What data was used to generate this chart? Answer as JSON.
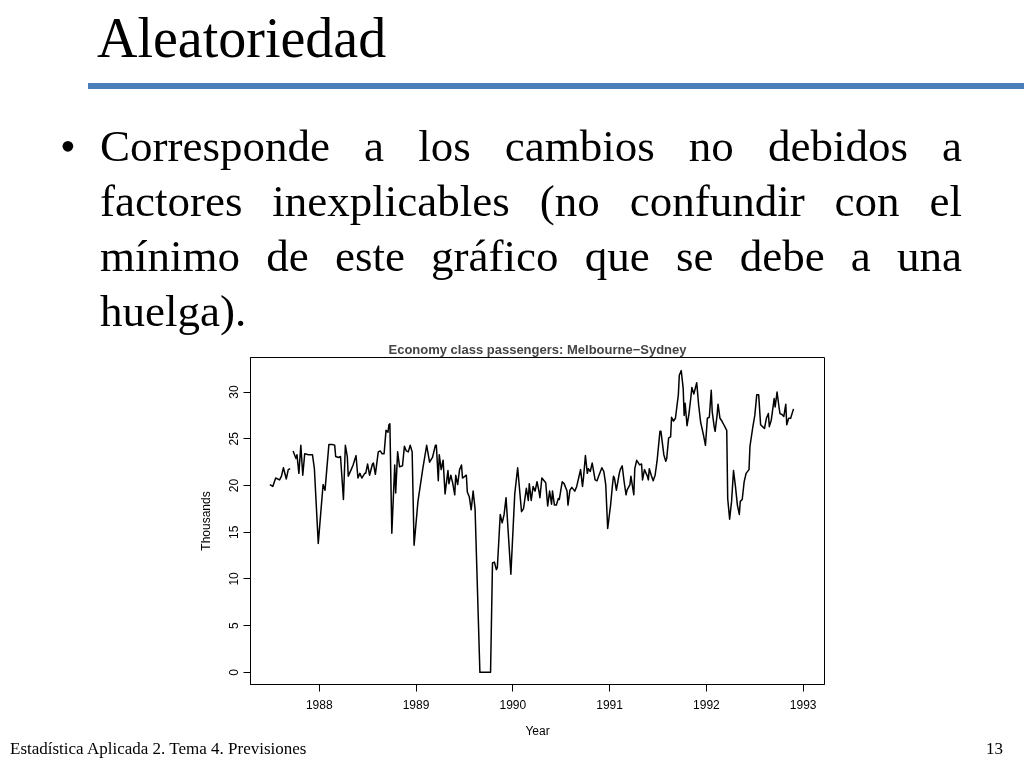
{
  "chart_data": {
    "type": "line",
    "title": "Economy class passengers: Melbourne−Sydney",
    "xlabel": "Year",
    "ylabel": "Thousands",
    "annotations": [
      "Aleatoriedad",
      "•",
      "Corresponde a los cambios no debidos a factores inexplicables (no confundir con el mínimo de este gráfico que se debe a una huelga).",
      "Estadística Aplicada 2. Tema 4. Previsiones",
      "13"
    ],
    "xlim": [
      1987.29,
      1993.22
    ],
    "xticks": [
      1988,
      1989,
      1990,
      1991,
      1992,
      1993
    ],
    "ylim": [
      -1.3,
      33.7
    ],
    "yticks": [
      0,
      5,
      10,
      15,
      20,
      25,
      30
    ],
    "grid": false,
    "color": "#000000",
    "x": [
      1987.49,
      1987.52,
      1987.55,
      1987.59,
      1987.61,
      1987.63,
      1987.66,
      1987.68,
      1987.7,
      1987.72,
      1987.73,
      1987.76,
      1987.77,
      1987.79,
      1987.81,
      1987.83,
      1987.85,
      1987.89,
      1987.91,
      1987.93,
      1987.95,
      1987.99,
      1988.02,
      1988.04,
      1988.06,
      1988.1,
      1988.13,
      1988.16,
      1988.17,
      1988.2,
      1988.22,
      1988.25,
      1988.27,
      1988.29,
      1988.3,
      1988.33,
      1988.35,
      1988.38,
      1988.4,
      1988.42,
      1988.44,
      1988.47,
      1988.48,
      1988.5,
      1988.52,
      1988.55,
      1988.56,
      1988.58,
      1988.61,
      1988.63,
      1988.65,
      1988.67,
      1988.69,
      1988.71,
      1988.72,
      1988.73,
      1988.75,
      1988.78,
      1988.79,
      1988.81,
      1988.83,
      1988.86,
      1988.88,
      1988.9,
      1988.92,
      1988.94,
      1988.96,
      1988.98,
      1989.02,
      1989.07,
      1989.11,
      1989.14,
      1989.17,
      1989.2,
      1989.21,
      1989.23,
      1989.24,
      1989.26,
      1989.28,
      1989.3,
      1989.33,
      1989.34,
      1989.36,
      1989.38,
      1989.4,
      1989.41,
      1989.43,
      1989.45,
      1989.47,
      1989.48,
      1989.52,
      1989.53,
      1989.55,
      1989.57,
      1989.59,
      1989.61,
      1989.66,
      1989.77,
      1989.79,
      1989.81,
      1989.83,
      1989.84,
      1989.87,
      1989.89,
      1989.91,
      1989.93,
      1989.98,
      1990.02,
      1990.05,
      1990.09,
      1990.11,
      1990.14,
      1990.16,
      1990.17,
      1990.19,
      1990.21,
      1990.23,
      1990.25,
      1990.27,
      1990.28,
      1990.3,
      1990.34,
      1990.36,
      1990.38,
      1990.4,
      1990.41,
      1990.43,
      1990.45,
      1990.47,
      1990.48,
      1990.51,
      1990.53,
      1990.56,
      1990.57,
      1990.59,
      1990.61,
      1990.64,
      1990.66,
      1990.68,
      1990.7,
      1990.72,
      1990.73,
      1990.75,
      1990.77,
      1990.78,
      1990.8,
      1990.82,
      1990.83,
      1990.85,
      1990.87,
      1990.89,
      1990.92,
      1990.94,
      1990.96,
      1990.98,
      1991.01,
      1991.03,
      1991.04,
      1991.05,
      1991.07,
      1991.1,
      1991.11,
      1991.13,
      1991.15,
      1991.17,
      1991.18,
      1991.21,
      1991.22,
      1991.25,
      1991.26,
      1991.28,
      1991.31,
      1991.33,
      1991.34,
      1991.36,
      1991.39,
      1991.4,
      1991.41,
      1991.43,
      1991.45,
      1991.47,
      1991.49,
      1991.52,
      1991.53,
      1991.56,
      1991.58,
      1991.59,
      1991.61,
      1991.63,
      1991.64,
      1991.66,
      1991.68,
      1991.71,
      1991.72,
      1991.74,
      1991.76,
      1991.77,
      1991.78,
      1991.8,
      1991.82,
      1991.84,
      1991.85,
      1991.87,
      1991.9,
      1991.92,
      1991.94,
      1991.97,
      1991.99,
      1992.01,
      1992.03,
      1992.05,
      1992.06,
      1992.08,
      1992.09,
      1992.11,
      1992.12,
      1992.14,
      1992.16,
      1992.18,
      1992.21,
      1992.22,
      1992.24,
      1992.26,
      1992.28,
      1992.3,
      1992.32,
      1992.34,
      1992.35,
      1992.37,
      1992.39,
      1992.41,
      1992.44,
      1992.45,
      1992.48,
      1992.5,
      1992.52,
      1992.54,
      1992.56,
      1992.58,
      1992.6,
      1992.62,
      1992.64,
      1992.65,
      1992.67,
      1992.7,
      1992.71,
      1992.73,
      1992.75,
      1992.76,
      1992.78,
      1992.8,
      1992.82,
      1992.83,
      1992.85,
      1992.87,
      1992.9
    ],
    "values": [
      20.1,
      19.9,
      20.8,
      20.6,
      21.0,
      21.9,
      20.7,
      21.7,
      21.8,
      null,
      23.7,
      22.9,
      23.3,
      21.3,
      24.3,
      21.1,
      23.4,
      23.3,
      23.3,
      23.3,
      21.8,
      13.8,
      17.6,
      20.1,
      19.5,
      24.4,
      24.4,
      24.3,
      23.1,
      23.0,
      23.1,
      18.5,
      24.3,
      23.1,
      21.0,
      21.7,
      22.2,
      23.2,
      20.8,
      21.3,
      20.8,
      21.3,
      21.3,
      22.3,
      21.1,
      22.3,
      22.4,
      21.2,
      23.6,
      23.7,
      23.4,
      23.4,
      25.9,
      25.7,
      26.5,
      26.6,
      14.9,
      22.2,
      19.2,
      23.6,
      22.0,
      22.1,
      24.2,
      23.7,
      23.6,
      24.3,
      23.6,
      13.6,
      18.3,
      21.8,
      24.3,
      22.5,
      23.0,
      24.3,
      24.3,
      20.5,
      23.3,
      21.7,
      22.7,
      19.1,
      21.6,
      20.2,
      21.1,
      20.2,
      19.0,
      21.1,
      20.1,
      21.7,
      22.2,
      20.8,
      21.1,
      19.3,
      18.8,
      17.4,
      19.4,
      17.5,
      0,
      0,
      11.7,
      11.8,
      11.0,
      11.2,
      16.9,
      16.0,
      16.9,
      18.7,
      10.5,
      19.1,
      21.9,
      17.2,
      17.5,
      19.7,
      18.4,
      20.2,
      18.4,
      19.9,
      19.4,
      20.4,
      19.4,
      18.7,
      20.8,
      20.3,
      17.8,
      19.4,
      18.0,
      19.4,
      17.9,
      17.9,
      18.6,
      18.5,
      20.4,
      20.2,
      19.4,
      17.9,
      19.5,
      19.8,
      19.4,
      19.9,
      20.8,
      21.7,
      19.9,
      20.8,
      23.2,
      21.3,
      21.8,
      21.5,
      22.4,
      21.8,
      20.6,
      20.5,
      21.1,
      21.9,
      21.5,
      20.1,
      15.4,
      17.9,
      20.1,
      21.0,
      20.8,
      19.5,
      21.3,
      21.7,
      22.1,
      20.4,
      19.0,
      19.5,
      20.1,
      21.0,
      19.0,
      21.8,
      22.7,
      22.2,
      22.3,
      20.6,
      21.7,
      21.0,
      20.6,
      21.8,
      21.1,
      20.5,
      21.1,
      22.6,
      25.8,
      25.8,
      23.3,
      22.6,
      22.9,
      25.1,
      25.2,
      27.3,
      26.9,
      27.2,
      29.7,
      31.8,
      32.3,
      30.4,
      27.5,
      28.8,
      26.4,
      27.7,
      29.5,
      30.5,
      29.8,
      31.0,
      28.6,
      26.8,
      25.4,
      24.3,
      27.2,
      27.3,
      30.2,
      27.9,
      26.3,
      25.8,
      27.5,
      28.7,
      27.2,
      26.9,
      26.5,
      25.9,
      18.6,
      16.4,
      18.3,
      21.6,
      19.9,
      17.9,
      16.9,
      18.3,
      18.5,
      20.4,
      21.3,
      21.7,
      24.2,
      26.3,
      27.5,
      29.7,
      29.7,
      26.5,
      26.3,
      26.1,
      27.2,
      27.7,
      26.3,
      27.0,
      29.3,
      28.4,
      30.0,
      28.4,
      27.7,
      27.6,
      27.4,
      28.7,
      26.5,
      27.2,
      27.2,
      28.2
    ]
  }
}
